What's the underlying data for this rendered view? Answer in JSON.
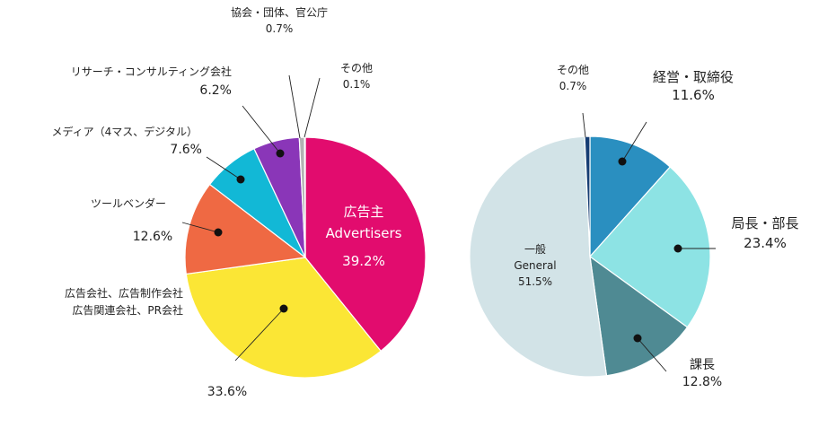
{
  "chart_data": [
    {
      "type": "pie",
      "title": "",
      "slices": [
        {
          "name": "広告主",
          "name2": "Advertisers",
          "value": 39.2,
          "value_label": "39.2%",
          "color": "#e20c6e"
        },
        {
          "name": "広告会社、広告制作会社",
          "name2": "広告関連会社、PR会社",
          "value": 33.6,
          "value_label": "33.6%",
          "color": "#fbe635"
        },
        {
          "name": "ツールベンダー",
          "value": 12.6,
          "value_label": "12.6%",
          "color": "#ef6943"
        },
        {
          "name": "メディア（4マス、デジタル）",
          "value": 7.6,
          "value_label": "7.6%",
          "color": "#12b8d6"
        },
        {
          "name": "リサーチ・コンサルティング会社",
          "value": 6.2,
          "value_label": "6.2%",
          "color": "#8a36b8"
        },
        {
          "name": "協会・団体、官公庁",
          "value": 0.7,
          "value_label": "0.7%",
          "color": "#b2b2b2"
        },
        {
          "name": "その他",
          "value": 0.1,
          "value_label": "0.1%",
          "color": "#ffffff"
        }
      ]
    },
    {
      "type": "pie",
      "title": "",
      "slices": [
        {
          "name": "経営・取締役",
          "value": 11.6,
          "value_label": "11.6%",
          "color": "#2a8fc0"
        },
        {
          "name": "局長・部長",
          "value": 23.4,
          "value_label": "23.4%",
          "color": "#8de3e4"
        },
        {
          "name": "課長",
          "value": 12.8,
          "value_label": "12.8%",
          "color": "#4f8a93"
        },
        {
          "name": "一般",
          "name2": "General",
          "value": 51.5,
          "value_label": "51.5%",
          "color": "#d2e3e7"
        },
        {
          "name": "その他",
          "value": 0.7,
          "value_label": "0.7%",
          "color": "#163d73"
        }
      ]
    }
  ]
}
